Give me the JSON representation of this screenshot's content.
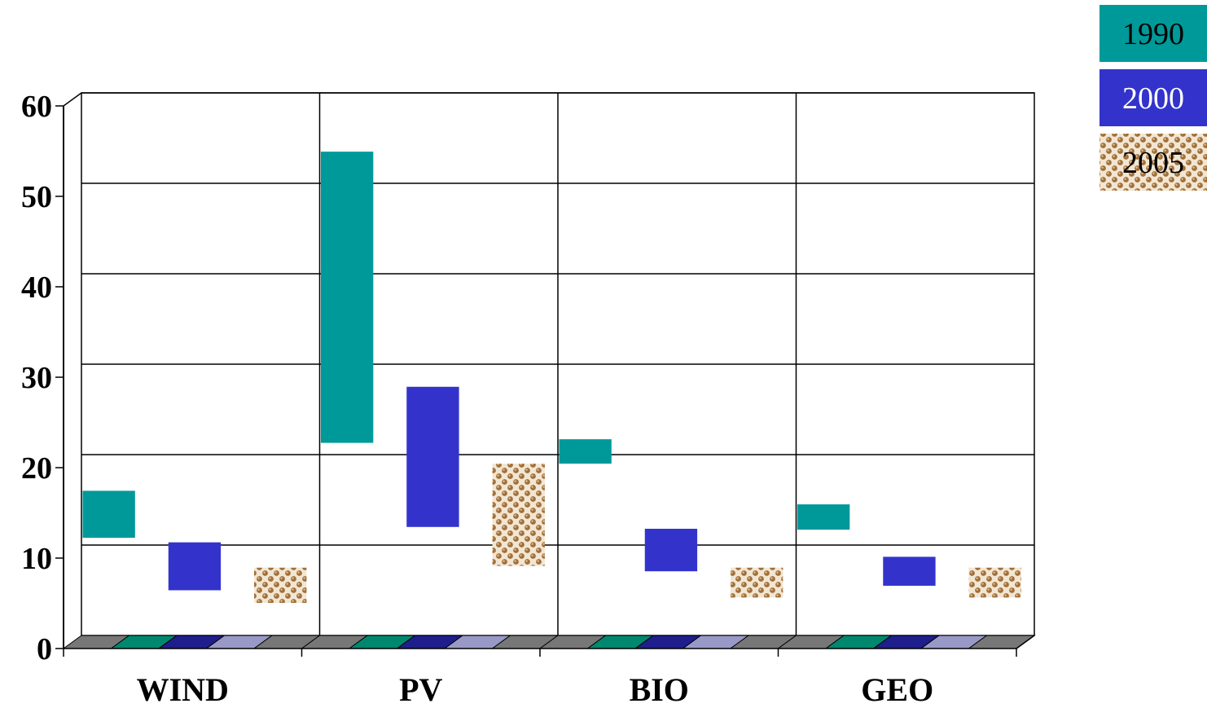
{
  "chart_data": {
    "type": "bar",
    "subtype": "floating-range",
    "categories": [
      "WIND",
      "PV",
      "BIO",
      "GEO"
    ],
    "series": [
      {
        "name": "1990",
        "color": "#009999",
        "pattern": "solid",
        "ranges": [
          [
            10.8,
            16.0
          ],
          [
            21.3,
            53.5
          ],
          [
            19.0,
            21.7
          ],
          [
            11.7,
            14.5
          ]
        ]
      },
      {
        "name": "2000",
        "color": "#3333CC",
        "pattern": "solid",
        "ranges": [
          [
            5.0,
            10.3
          ],
          [
            12.0,
            27.5
          ],
          [
            7.1,
            11.8
          ],
          [
            5.5,
            8.7
          ]
        ]
      },
      {
        "name": "2005",
        "color": "#A0703C",
        "pattern": "dots",
        "ranges": [
          [
            3.6,
            7.5
          ],
          [
            7.7,
            19.0
          ],
          [
            4.2,
            7.5
          ],
          [
            4.2,
            7.5
          ]
        ]
      }
    ],
    "yticks": [
      0,
      10,
      20,
      30,
      40,
      50,
      60
    ],
    "ylim": [
      0,
      60
    ],
    "grid": true,
    "legend": "top-right",
    "floor_colors": [
      "#777777",
      "#00886E",
      "#1E1E8C",
      "#9999C8"
    ]
  }
}
